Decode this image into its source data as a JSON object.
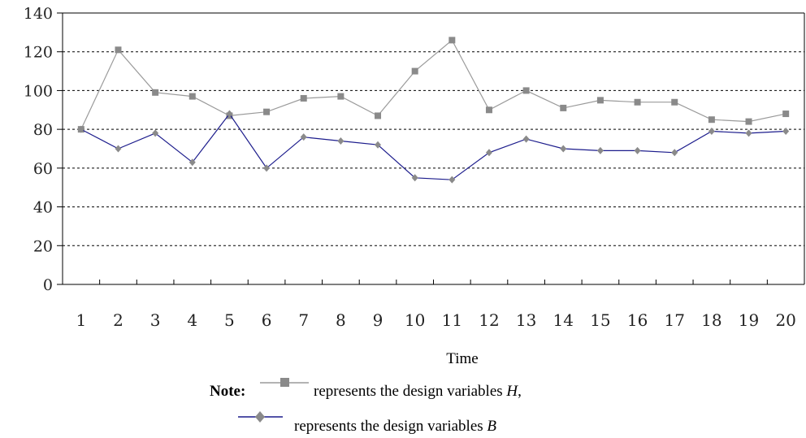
{
  "chart_data": {
    "type": "line",
    "x": [
      "1",
      "2",
      "3",
      "4",
      "5",
      "6",
      "7",
      "8",
      "9",
      "10",
      "11",
      "12",
      "13",
      "14",
      "15",
      "16",
      "17",
      "18",
      "19",
      "20"
    ],
    "series": [
      {
        "name": "H",
        "color": "#9a9a9a",
        "marker": "square",
        "values": [
          80,
          121,
          99,
          97,
          87,
          89,
          96,
          97,
          87,
          110,
          126,
          90,
          100,
          91,
          95,
          94,
          94,
          85,
          84,
          88
        ]
      },
      {
        "name": "B",
        "color": "#1c1c8c",
        "marker": "diamond",
        "values": [
          80,
          70,
          78,
          63,
          88,
          60,
          76,
          74,
          72,
          55,
          54,
          68,
          75,
          70,
          69,
          69,
          68,
          79,
          78,
          79
        ]
      }
    ],
    "yticks": [
      "0",
      "20",
      "40",
      "60",
      "80",
      "100",
      "120",
      "140"
    ],
    "ylim": [
      0,
      140
    ],
    "grid": true,
    "xlabel": "Time",
    "ylabel": ""
  },
  "legend": {
    "note_label": "Note:",
    "h_text_prefix": "represents the design variables ",
    "h_var": "H",
    "h_text_suffix": ",",
    "b_text_prefix": "represents the design variables ",
    "b_var": "B"
  }
}
